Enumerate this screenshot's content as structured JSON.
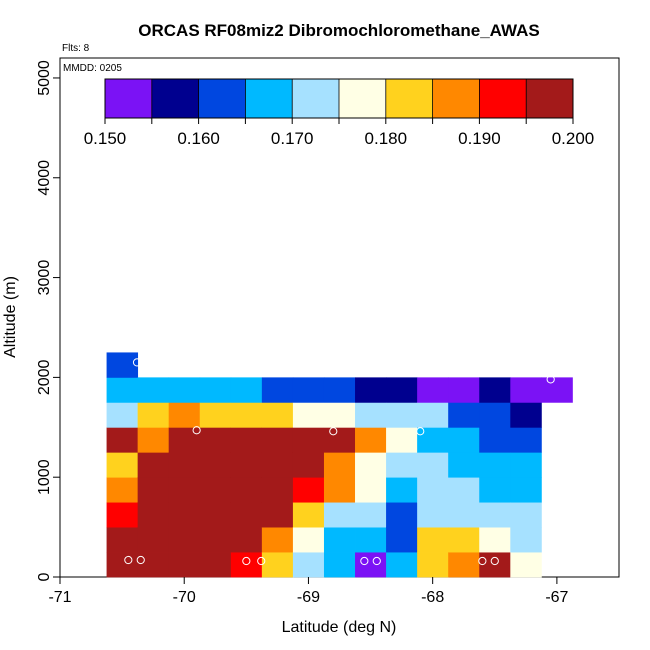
{
  "chart_data": {
    "type": "heatmap",
    "title": "ORCAS RF08miz2 Dibromochloromethane_AWAS",
    "flights_label": "Flts: 8",
    "date_label": "MMDD: 0205",
    "xlabel": "Latitude (deg N)",
    "ylabel": "Altitude (m)",
    "xlim": [
      -71.0,
      -66.5
    ],
    "ylim": [
      0,
      5200
    ],
    "x_ticks": [
      -71,
      -70,
      -69,
      -68,
      -67
    ],
    "y_ticks": [
      0,
      1000,
      2000,
      3000,
      4000,
      5000
    ],
    "cell_width_deg": 0.25,
    "cell_height_m": 250,
    "color_scale": {
      "min": 0.15,
      "max": 0.2,
      "ticks": [
        "0.150",
        "0.160",
        "0.170",
        "0.180",
        "0.190",
        "0.200"
      ],
      "colors": [
        "#7b12f5",
        "#00008f",
        "#0047e0",
        "#00b9ff",
        "#a6e1ff",
        "#ffffe5",
        "#ffd21e",
        "#ff8800",
        "#ff0000",
        "#a31a1a"
      ]
    },
    "cell_columns": [
      {
        "lon": -70.5,
        "values": [
          0.2,
          0.195,
          0.193,
          0.188,
          0.184,
          0.195,
          0.171,
          0.166,
          0.161
        ]
      },
      {
        "lon": -70.25,
        "values": [
          0.198,
          0.197,
          0.198,
          0.196,
          0.195,
          0.188,
          0.184,
          0.169
        ]
      },
      {
        "lon": -70.0,
        "values": [
          0.197,
          0.198,
          0.198,
          0.199,
          0.2,
          0.2,
          0.187,
          0.168
        ]
      },
      {
        "lon": -69.75,
        "values": [
          0.196,
          0.195,
          0.197,
          0.198,
          0.199,
          0.2,
          0.185,
          0.166
        ]
      },
      {
        "lon": -69.5,
        "values": [
          0.194,
          0.196,
          0.197,
          0.198,
          0.199,
          0.2,
          0.184,
          0.166
        ]
      },
      {
        "lon": -69.25,
        "values": [
          0.184,
          0.19,
          0.195,
          0.197,
          0.199,
          0.2,
          0.181,
          0.164
        ]
      },
      {
        "lon": -69.0,
        "values": [
          0.173,
          0.177,
          0.185,
          0.193,
          0.196,
          0.2,
          0.178,
          0.163
        ]
      },
      {
        "lon": -68.75,
        "values": [
          0.165,
          0.166,
          0.174,
          0.189,
          0.188,
          0.196,
          0.177,
          0.162
        ]
      },
      {
        "lon": -68.5,
        "values": [
          0.152,
          0.167,
          0.171,
          0.178,
          0.178,
          0.187,
          0.174,
          0.158
        ]
      },
      {
        "lon": -68.25,
        "values": [
          0.165,
          0.163,
          0.164,
          0.166,
          0.171,
          0.176,
          0.174,
          0.155
        ]
      },
      {
        "lon": -68.0,
        "values": [
          0.185,
          0.181,
          0.174,
          0.175,
          0.17,
          0.169,
          0.171,
          0.154
        ]
      },
      {
        "lon": -67.75,
        "values": [
          0.19,
          0.181,
          0.171,
          0.171,
          0.168,
          0.165,
          0.163,
          0.153
        ]
      },
      {
        "lon": -67.5,
        "values": [
          0.197,
          0.179,
          0.173,
          0.168,
          0.166,
          0.163,
          0.16,
          0.156
        ]
      },
      {
        "lon": -67.25,
        "values": [
          0.178,
          0.174,
          0.171,
          0.167,
          0.167,
          0.163,
          0.159,
          0.153
        ]
      },
      {
        "lon": -67.0,
        "values": [
          0,
          0,
          0,
          0,
          0,
          0,
          0,
          0.151
        ]
      }
    ],
    "sample_points": [
      {
        "lon": -70.45,
        "alt": 170
      },
      {
        "lon": -70.35,
        "alt": 170
      },
      {
        "lon": -69.5,
        "alt": 160
      },
      {
        "lon": -69.38,
        "alt": 160
      },
      {
        "lon": -68.55,
        "alt": 160
      },
      {
        "lon": -68.45,
        "alt": 160
      },
      {
        "lon": -67.6,
        "alt": 160
      },
      {
        "lon": -67.5,
        "alt": 160
      },
      {
        "lon": -69.9,
        "alt": 1470
      },
      {
        "lon": -68.8,
        "alt": 1460
      },
      {
        "lon": -68.1,
        "alt": 1460
      },
      {
        "lon": -70.38,
        "alt": 2150
      },
      {
        "lon": -67.05,
        "alt": 1980
      }
    ]
  }
}
